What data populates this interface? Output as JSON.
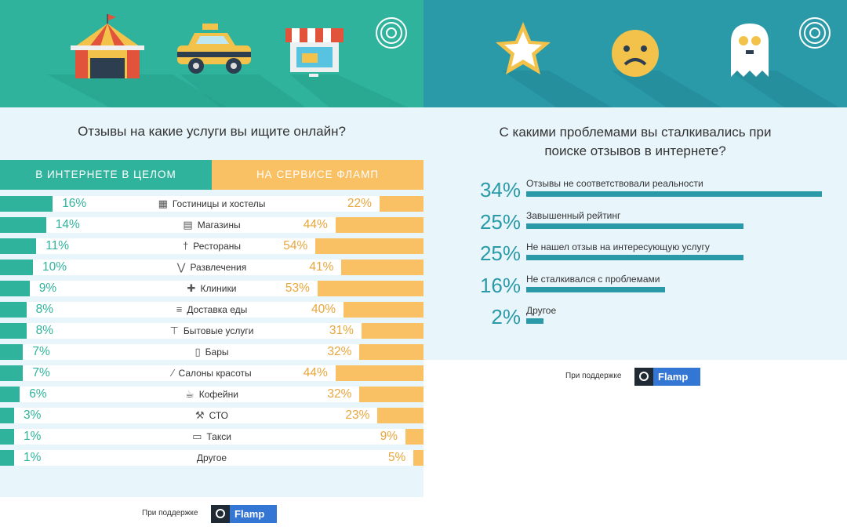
{
  "left": {
    "question": "Отзывы на какие услуги вы ищите онлайн?",
    "tabs": {
      "general": "В ИНТЕРНЕТЕ В ЦЕЛОМ",
      "flamp": "НА СЕРВИСЕ ФЛАМП"
    },
    "support_text": "При поддержке",
    "logo_text": "Flamp"
  },
  "right": {
    "question_line1": "С какими проблемами вы сталкивались при",
    "question_line2": "поиске отзывов в интернете?",
    "support_text": "При поддержке",
    "logo_text": "Flamp"
  },
  "colors": {
    "teal": "#2fb39c",
    "orange": "#f9c163",
    "blue_teal": "#2a9aa8",
    "light_bg": "#e8f5fb"
  },
  "icons": {
    "left_banner": [
      "circus-tent-icon",
      "taxi-icon",
      "shop-icon",
      "target-icon"
    ],
    "right_banner": [
      "star-icon",
      "sad-face-icon",
      "ghost-icon",
      "target-icon"
    ]
  },
  "chart_data": [
    {
      "type": "bar",
      "categories": [
        "Гостиницы и хостелы",
        "Магазины",
        "Рестораны",
        "Развлечения",
        "Клиники",
        "Доставка еды",
        "Бытовые услуги",
        "Бары",
        "Салоны красоты",
        "Кофейни",
        "СТО",
        "Такси",
        "Другое"
      ],
      "category_icons": [
        "hotel-icon",
        "store-icon",
        "cutlery-icon",
        "cocktail-icon",
        "medical-cross-icon",
        "burger-icon",
        "hammer-icon",
        "bottle-icon",
        "comb-icon",
        "coffee-cup-icon",
        "wrench-icon",
        "car-icon",
        ""
      ],
      "series": [
        {
          "name": "В ИНТЕРНЕТЕ В ЦЕЛОМ",
          "values": [
            16,
            14,
            11,
            10,
            9,
            8,
            8,
            7,
            7,
            6,
            3,
            1,
            1
          ],
          "labels": [
            "16%",
            "14%",
            "11%",
            "10%",
            "9%",
            "8%",
            "8%",
            "7%",
            "7%",
            "6%",
            "3%",
            "1%",
            "1%"
          ]
        },
        {
          "name": "НА СЕРВИСЕ ФЛАМП",
          "values": [
            22,
            44,
            54,
            41,
            53,
            40,
            31,
            32,
            44,
            32,
            23,
            9,
            5
          ],
          "labels": [
            "22%",
            "44%",
            "54%",
            "41%",
            "53%",
            "40%",
            "31%",
            "32%",
            "44%",
            "32%",
            "23%",
            "9%",
            "5%"
          ]
        }
      ]
    },
    {
      "type": "bar",
      "categories": [
        "Отзывы не соответствовали реальности",
        "Завышенный рейтинг",
        "Не нашел отзыв на интересующую услугу",
        "Не сталкивался с проблемами",
        "Другое"
      ],
      "values": [
        34,
        25,
        25,
        16,
        2
      ],
      "labels": [
        "34%",
        "25%",
        "25%",
        "16%",
        "2%"
      ]
    }
  ]
}
